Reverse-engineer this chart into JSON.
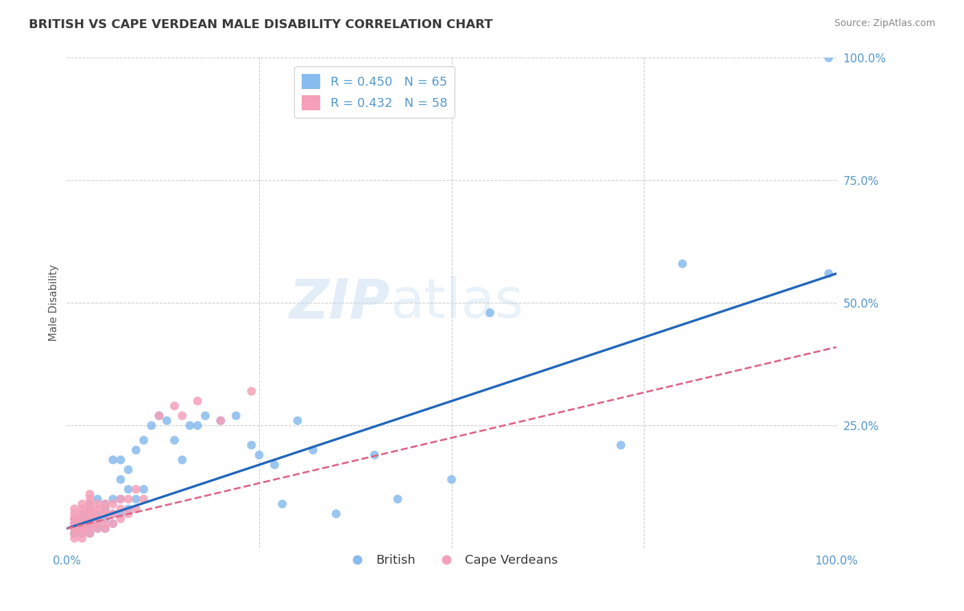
{
  "title": "BRITISH VS CAPE VERDEAN MALE DISABILITY CORRELATION CHART",
  "source": "Source: ZipAtlas.com",
  "ylabel": "Male Disability",
  "xlim": [
    0.0,
    1.0
  ],
  "ylim": [
    0.0,
    1.0
  ],
  "background_color": "#ffffff",
  "grid_color": "#cccccc",
  "title_color": "#3a3a3a",
  "british_color": "#88bbee",
  "cape_verdean_color": "#f5a0b8",
  "british_line_color": "#2266bb",
  "cape_verdean_line_color": "#dd6688",
  "R_british": 0.45,
  "N_british": 65,
  "R_cape_verdean": 0.432,
  "N_cape_verdean": 58,
  "watermark": "ZIPatlas",
  "axis_label_color": "#5599cc",
  "british_line_intercept": 0.04,
  "british_line_slope": 0.52,
  "cape_line_intercept": 0.04,
  "cape_line_slope": 0.37,
  "british_x": [
    0.01,
    0.01,
    0.01,
    0.01,
    0.02,
    0.02,
    0.02,
    0.02,
    0.02,
    0.03,
    0.03,
    0.03,
    0.03,
    0.03,
    0.03,
    0.03,
    0.04,
    0.04,
    0.04,
    0.04,
    0.04,
    0.05,
    0.05,
    0.05,
    0.05,
    0.06,
    0.06,
    0.06,
    0.06,
    0.07,
    0.07,
    0.07,
    0.07,
    0.08,
    0.08,
    0.08,
    0.09,
    0.09,
    0.1,
    0.1,
    0.11,
    0.12,
    0.13,
    0.14,
    0.15,
    0.16,
    0.17,
    0.18,
    0.2,
    0.22,
    0.24,
    0.25,
    0.27,
    0.28,
    0.3,
    0.32,
    0.35,
    0.4,
    0.43,
    0.5,
    0.55,
    0.72,
    0.8,
    0.99,
    0.99
  ],
  "british_y": [
    0.03,
    0.04,
    0.05,
    0.06,
    0.03,
    0.04,
    0.05,
    0.06,
    0.07,
    0.03,
    0.04,
    0.05,
    0.06,
    0.07,
    0.08,
    0.09,
    0.04,
    0.05,
    0.06,
    0.07,
    0.1,
    0.04,
    0.06,
    0.08,
    0.09,
    0.05,
    0.07,
    0.1,
    0.18,
    0.07,
    0.1,
    0.14,
    0.18,
    0.08,
    0.12,
    0.16,
    0.1,
    0.2,
    0.12,
    0.22,
    0.25,
    0.27,
    0.26,
    0.22,
    0.18,
    0.25,
    0.25,
    0.27,
    0.26,
    0.27,
    0.21,
    0.19,
    0.17,
    0.09,
    0.26,
    0.2,
    0.07,
    0.19,
    0.1,
    0.14,
    0.48,
    0.21,
    0.58,
    0.56,
    1.0
  ],
  "cape_verdean_x": [
    0.01,
    0.01,
    0.01,
    0.01,
    0.01,
    0.01,
    0.01,
    0.01,
    0.01,
    0.01,
    0.02,
    0.02,
    0.02,
    0.02,
    0.02,
    0.02,
    0.02,
    0.02,
    0.02,
    0.03,
    0.03,
    0.03,
    0.03,
    0.03,
    0.03,
    0.03,
    0.03,
    0.03,
    0.03,
    0.03,
    0.04,
    0.04,
    0.04,
    0.04,
    0.04,
    0.04,
    0.05,
    0.05,
    0.05,
    0.05,
    0.05,
    0.06,
    0.06,
    0.06,
    0.07,
    0.07,
    0.07,
    0.08,
    0.08,
    0.09,
    0.09,
    0.1,
    0.12,
    0.14,
    0.15,
    0.17,
    0.2,
    0.24
  ],
  "cape_verdean_y": [
    0.02,
    0.03,
    0.04,
    0.04,
    0.05,
    0.05,
    0.06,
    0.06,
    0.07,
    0.08,
    0.02,
    0.03,
    0.04,
    0.04,
    0.05,
    0.06,
    0.07,
    0.08,
    0.09,
    0.03,
    0.04,
    0.05,
    0.06,
    0.07,
    0.07,
    0.08,
    0.08,
    0.09,
    0.1,
    0.11,
    0.04,
    0.05,
    0.06,
    0.07,
    0.08,
    0.09,
    0.04,
    0.05,
    0.07,
    0.08,
    0.09,
    0.05,
    0.07,
    0.09,
    0.06,
    0.08,
    0.1,
    0.07,
    0.1,
    0.08,
    0.12,
    0.1,
    0.27,
    0.29,
    0.27,
    0.3,
    0.26,
    0.32
  ]
}
